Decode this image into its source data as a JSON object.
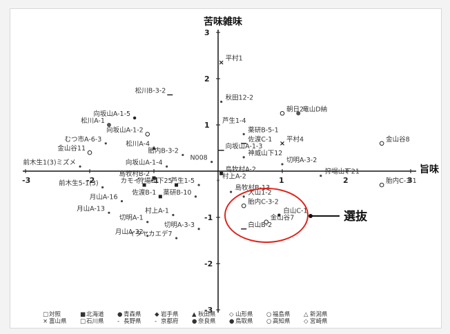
{
  "chart_data": {
    "type": "scatter",
    "title": "",
    "xlabel": "旨味",
    "ylabel": "苦味雑味",
    "xlim": [
      -3,
      3
    ],
    "ylim": [
      -3,
      3
    ],
    "x_ticks": [
      "-3",
      "-2",
      "-1",
      "1",
      "2",
      "3"
    ],
    "y_ticks": [
      "3",
      "2",
      "1",
      "-1",
      "-2",
      "-3"
    ],
    "grid": false,
    "points": [
      {
        "label": "平村1",
        "x": 0.05,
        "y": 2.35,
        "marker": "x"
      },
      {
        "label": "松川B-3-2",
        "x": -0.75,
        "y": 1.65,
        "marker": "dash"
      },
      {
        "label": "秋田12-2",
        "x": 0.05,
        "y": 1.5,
        "marker": "none"
      },
      {
        "label": "朝日2",
        "x": 1.0,
        "y": 1.25,
        "marker": "circle-open"
      },
      {
        "label": "竜山D納",
        "x": 1.25,
        "y": 1.25,
        "marker": "circle-fill"
      },
      {
        "label": "向坂山A-1-5",
        "x": -1.3,
        "y": 1.15,
        "marker": "dot"
      },
      {
        "label": "松川A-1",
        "x": -1.7,
        "y": 1.0,
        "marker": "circle-fill"
      },
      {
        "label": "芦生1-4",
        "x": 0.0,
        "y": 1.0,
        "marker": "none"
      },
      {
        "label": "薬研B-5-1",
        "x": 0.4,
        "y": 0.8,
        "marker": "none"
      },
      {
        "label": "向坂山A-1-2",
        "x": -1.1,
        "y": 0.8,
        "marker": "circle-open"
      },
      {
        "label": "佐渡C-1",
        "x": 0.4,
        "y": 0.6,
        "marker": "dash"
      },
      {
        "label": "平村4",
        "x": 1.0,
        "y": 0.6,
        "marker": "x"
      },
      {
        "label": "むつ市A-6-3",
        "x": -1.75,
        "y": 0.6,
        "marker": "none"
      },
      {
        "label": "向坂山A-1-3",
        "x": 0.05,
        "y": 0.45,
        "marker": "dash"
      },
      {
        "label": "松川A-4",
        "x": -1.0,
        "y": 0.5,
        "marker": "triangle"
      },
      {
        "label": "金山谷8",
        "x": 2.55,
        "y": 0.6,
        "marker": "circle-open"
      },
      {
        "label": "金山谷11",
        "x": -2.0,
        "y": 0.4,
        "marker": "circle-open"
      },
      {
        "label": "胎内B-3-2",
        "x": -0.55,
        "y": 0.35,
        "marker": "none"
      },
      {
        "label": "神威山下12",
        "x": 0.4,
        "y": 0.3,
        "marker": "none"
      },
      {
        "label": "N008",
        "x": -0.1,
        "y": 0.2,
        "marker": "none"
      },
      {
        "label": "切明A-3-2",
        "x": 1.0,
        "y": 0.15,
        "marker": "none"
      },
      {
        "label": "向坂山A-1-4",
        "x": -0.8,
        "y": 0.1,
        "marker": "none"
      },
      {
        "label": "前木生1(3)ミズメ",
        "x": -2.15,
        "y": 0.1,
        "marker": "none"
      },
      {
        "label": "狩場山下21",
        "x": 1.6,
        "y": -0.1,
        "marker": "none"
      },
      {
        "label": "胎内C-3-1",
        "x": 2.55,
        "y": -0.3,
        "marker": "circle-open"
      },
      {
        "label": "島牧村A-2",
        "x": 0.05,
        "y": -0.05,
        "marker": "square"
      },
      {
        "label": "島牧村B-2",
        "x": -1.0,
        "y": -0.15,
        "marker": "square"
      },
      {
        "label": "村上A-2",
        "x": 0.0,
        "y": -0.2,
        "marker": "none"
      },
      {
        "label": "カモイ",
        "x": -1.15,
        "y": -0.3,
        "marker": "square"
      },
      {
        "label": "狩場山下25",
        "x": -0.65,
        "y": -0.3,
        "marker": "square"
      },
      {
        "label": "芦生1-5",
        "x": -0.3,
        "y": -0.3,
        "marker": "none"
      },
      {
        "label": "前木生5-1(3)",
        "x": -1.8,
        "y": -0.35,
        "marker": "none"
      },
      {
        "label": "島牧村B-13",
        "x": 0.2,
        "y": -0.45,
        "marker": "none"
      },
      {
        "label": "佐渡B-1",
        "x": -0.9,
        "y": -0.55,
        "marker": "square"
      },
      {
        "label": "薬研B-10",
        "x": -0.35,
        "y": -0.55,
        "marker": "none"
      },
      {
        "label": "月山A-16",
        "x": -1.5,
        "y": -0.65,
        "marker": "none"
      },
      {
        "label": "大山1-2",
        "x": 0.4,
        "y": -0.55,
        "marker": "none"
      },
      {
        "label": "胎内C-3-2",
        "x": 0.4,
        "y": -0.75,
        "marker": "circle-open"
      },
      {
        "label": "月山A-13",
        "x": -1.7,
        "y": -0.9,
        "marker": "none"
      },
      {
        "label": "村上A-1",
        "x": -0.7,
        "y": -0.95,
        "marker": "none"
      },
      {
        "label": "白山C-1",
        "x": 0.95,
        "y": -0.95,
        "marker": "dot"
      },
      {
        "label": "切明A-1",
        "x": -1.1,
        "y": -1.1,
        "marker": "none"
      },
      {
        "label": "金山谷7",
        "x": 0.75,
        "y": -1.1,
        "marker": "circle-open"
      },
      {
        "label": "切明A-3-3",
        "x": -0.3,
        "y": -1.25,
        "marker": "none"
      },
      {
        "label": "白山B-2",
        "x": 0.4,
        "y": -1.25,
        "marker": "dash"
      },
      {
        "label": "月山A-32",
        "x": -1.1,
        "y": -1.4,
        "marker": "none"
      },
      {
        "label": "イタヤカエデ7",
        "x": -0.65,
        "y": -1.45,
        "marker": "none"
      }
    ],
    "annotation": "選抜",
    "legend": {
      "position": "bottom",
      "items": [
        {
          "symbol": "□",
          "label": "対照"
        },
        {
          "symbol": "■",
          "label": "北海道"
        },
        {
          "symbol": "●",
          "label": "青森県"
        },
        {
          "symbol": "◆",
          "label": "岩手県"
        },
        {
          "symbol": "▲",
          "label": "秋田県"
        },
        {
          "symbol": "◇",
          "label": "山形県"
        },
        {
          "symbol": "○",
          "label": "福島県"
        },
        {
          "symbol": "△",
          "label": "新潟県"
        },
        {
          "symbol": "×",
          "label": "富山県"
        },
        {
          "symbol": "□",
          "label": "石川県"
        },
        {
          "symbol": "-",
          "label": "長野県"
        },
        {
          "symbol": "-",
          "label": "京都府"
        },
        {
          "symbol": "●",
          "label": "奈良県"
        },
        {
          "symbol": "●",
          "label": "鳥取県"
        },
        {
          "symbol": "○",
          "label": "高知県"
        },
        {
          "symbol": "◇",
          "label": "宮崎県"
        }
      ]
    },
    "colors": {
      "circle": "#e0241b",
      "marker": "#111111",
      "arrow": "#111111"
    }
  }
}
